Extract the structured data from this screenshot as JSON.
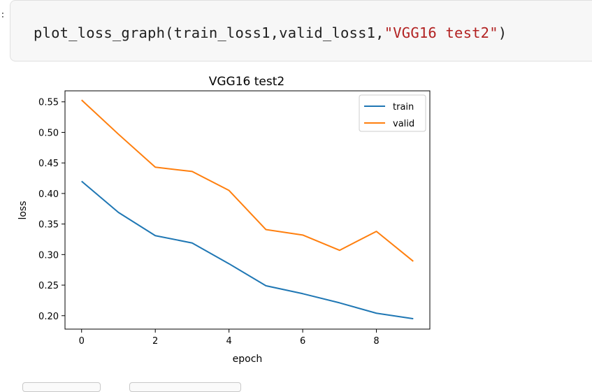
{
  "notebook": {
    "prompt": ":",
    "code": {
      "fn": "plot_loss_graph",
      "args": "(train_loss1,valid_loss1,",
      "string_arg": "\"VGG16 test2\"",
      "close": ")"
    }
  },
  "chart_data": {
    "type": "line",
    "title": "VGG16 test2",
    "xlabel": "epoch",
    "ylabel": "loss",
    "x": [
      0,
      1,
      2,
      3,
      4,
      5,
      6,
      7,
      8,
      9
    ],
    "xlim": [
      -0.45,
      9.45
    ],
    "ylim": [
      0.178,
      0.568
    ],
    "xticks": [
      0,
      2,
      4,
      6,
      8
    ],
    "xtick_labels": [
      "0",
      "2",
      "4",
      "6",
      "8"
    ],
    "yticks": [
      0.2,
      0.25,
      0.3,
      0.35,
      0.4,
      0.45,
      0.5,
      0.55
    ],
    "ytick_labels": [
      "0.20",
      "0.25",
      "0.30",
      "0.35",
      "0.40",
      "0.45",
      "0.50",
      "0.55"
    ],
    "grid": false,
    "legend_position": "top-right",
    "series": [
      {
        "name": "train",
        "color": "#1f77b4",
        "values": [
          0.42,
          0.369,
          0.331,
          0.319,
          0.285,
          0.249,
          0.236,
          0.221,
          0.204,
          0.195
        ]
      },
      {
        "name": "valid",
        "color": "#ff7f0e",
        "values": [
          0.553,
          0.497,
          0.443,
          0.436,
          0.405,
          0.341,
          0.332,
          0.307,
          0.338,
          0.289
        ]
      }
    ]
  }
}
